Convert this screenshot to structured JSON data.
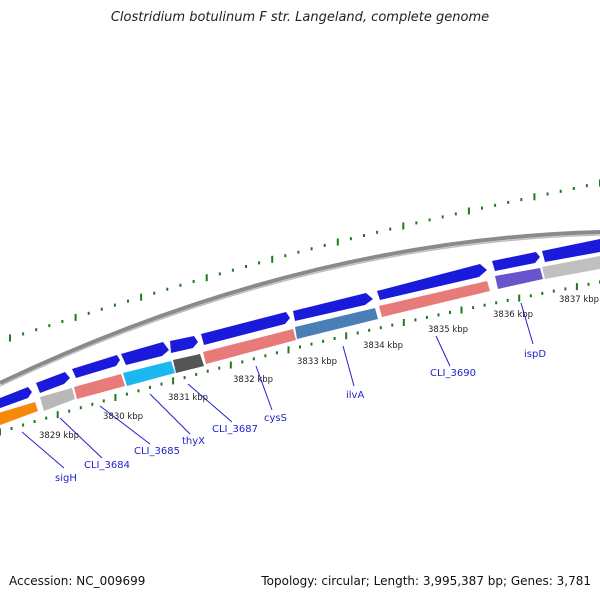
{
  "title": "Clostridium botulinum F str. Langeland, complete genome",
  "footer": {
    "accession": "Accession: NC_009699",
    "summary": "Topology: circular; Length: 3,995,387 bp; Genes: 3,781"
  },
  "colors": {
    "backbone": "#8a8a8a",
    "forward_gene": "#1a1adb",
    "tick": "#1d7a1d",
    "label": "#2222cc"
  },
  "kbp_labels": [
    "3829 kbp",
    "3830 kbp",
    "3831 kbp",
    "3832 kbp",
    "3833 kbp",
    "3834 kbp",
    "3835 kbp",
    "3836 kbp",
    "3837 kbp"
  ],
  "gene_labels": [
    "sigH",
    "CLI_3684",
    "CLI_3685",
    "thyX",
    "CLI_3687",
    "cysS",
    "ilvA",
    "CLI_3690",
    "ispD"
  ]
}
